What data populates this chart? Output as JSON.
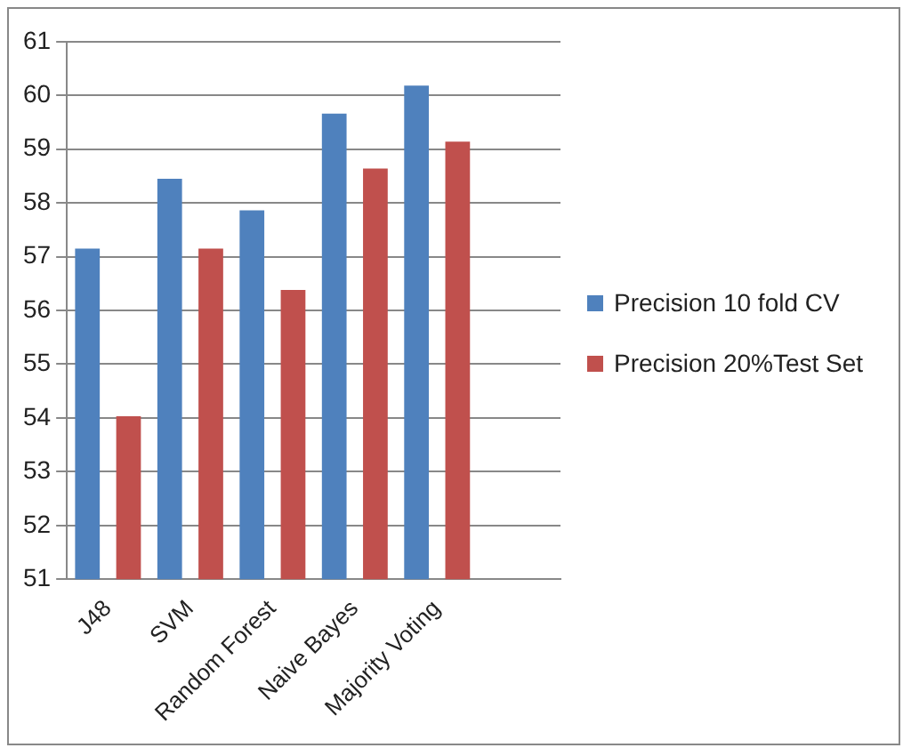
{
  "chart_data": {
    "type": "bar",
    "categories": [
      "J48",
      "SVM",
      "Random Forest",
      "Naive Bayes",
      "Majority Voting",
      null
    ],
    "series": [
      {
        "name": "Precision 10 fold CV",
        "color": "#4f81bd",
        "values": [
          57.15,
          58.45,
          57.86,
          59.66,
          60.18,
          null
        ]
      },
      {
        "name": "Precision 20%Test Set",
        "color": "#c0504d",
        "values": [
          54.03,
          57.15,
          56.38,
          58.64,
          59.14,
          null
        ]
      }
    ],
    "ylim": [
      51,
      61
    ],
    "yticks": [
      51,
      52,
      53,
      54,
      55,
      56,
      57,
      58,
      59,
      60,
      61
    ],
    "grid": "y",
    "legend": "right"
  }
}
